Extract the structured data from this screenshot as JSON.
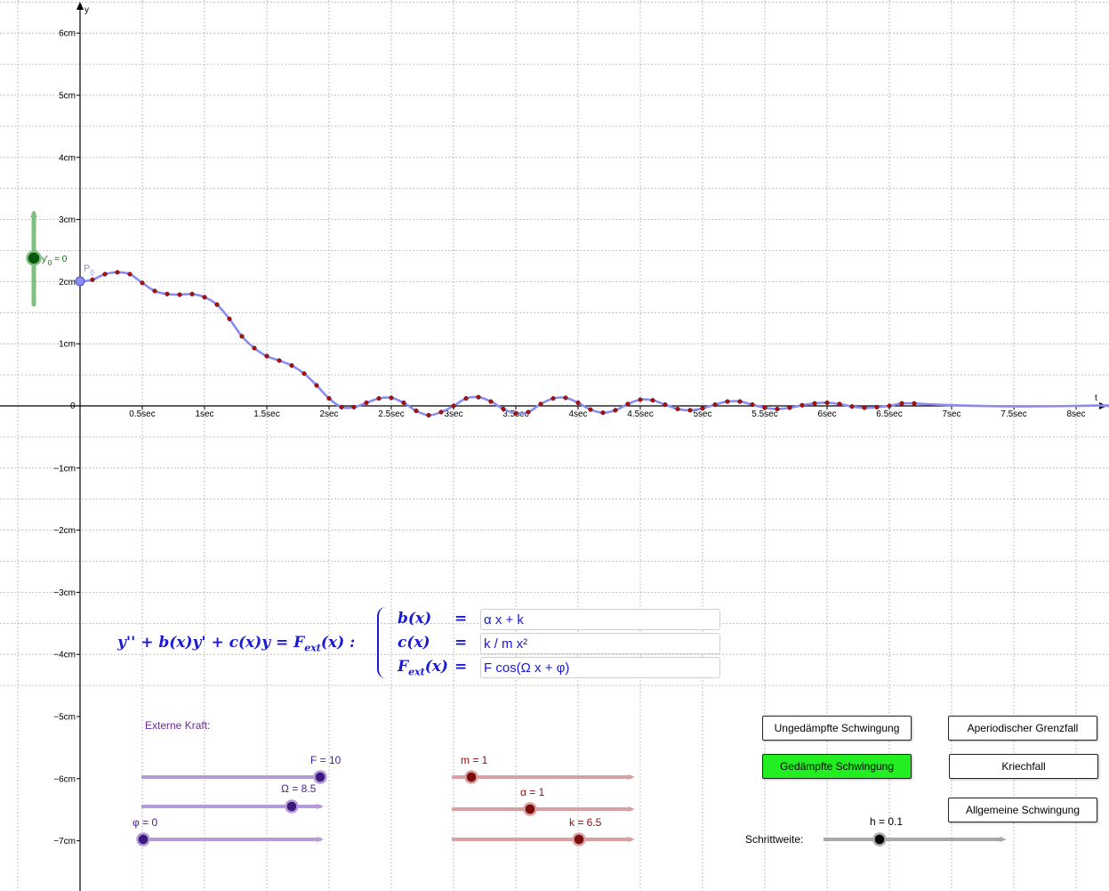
{
  "axes": {
    "x_name": "t",
    "y_name": "y",
    "x_ticks": [
      "0.5sec",
      "1sec",
      "1.5sec",
      "2sec",
      "2.5sec",
      "3sec",
      "3.5sec",
      "4sec",
      "4.5sec",
      "5sec",
      "5.5sec",
      "6sec",
      "6.5sec",
      "7sec",
      "7.5sec",
      "8sec"
    ],
    "y_ticks_pos": [
      "1cm",
      "2cm",
      "3cm",
      "4cm",
      "5cm",
      "6cm"
    ],
    "y_ticks_neg": [
      "−1cm",
      "−2cm",
      "−3cm",
      "−4cm",
      "−5cm",
      "−6cm",
      "−7cm"
    ],
    "origin_label": "0"
  },
  "point_label": "P",
  "point_subscript": "0",
  "y0_slider": {
    "label": "y'",
    "subscript": "0",
    "value_text": " = 0",
    "value": 0
  },
  "equation": {
    "lhs": "y'' + b(x)y' + c(x)y = F",
    "lhs_sub": "ext",
    "lhs_tail": "(x) :",
    "row_b": "b(x)",
    "row_c": "c(x)",
    "row_f": "F",
    "row_f_sub": "ext",
    "row_f_tail": "(x)",
    "eq_sign": "=",
    "b_value": "α x + k",
    "c_value": "k / m x²",
    "f_value": "F cos(Ω x + φ)"
  },
  "external_force_label": "Externe Kraft:",
  "sliders": {
    "F": {
      "label": "F = 10",
      "value": 10
    },
    "Omega": {
      "label": "Ω = 8.5",
      "value": 8.5
    },
    "phi": {
      "label": "φ = 0",
      "value": 0
    },
    "m": {
      "label": "m = 1",
      "value": 1
    },
    "alpha": {
      "label": "α = 1",
      "value": 1
    },
    "k": {
      "label": "k = 6.5",
      "value": 6.5
    },
    "h": {
      "label": "h = 0.1",
      "value": 0.1
    }
  },
  "step_label": "Schrittweite:",
  "buttons": {
    "undamped": "Ungedämpfte Schwingung",
    "aperiodic": "Aperiodischer Grenzfall",
    "damped": "Gedämpfte Schwingung",
    "creep": "Kriechfall",
    "general": "Allgemeine Schwingung"
  },
  "colors": {
    "curve": "#8c8cf0",
    "points": "#c01010",
    "purple_slider": "#9f7cc6",
    "red_slider": "#d08c8c",
    "green_slider": "#7fbf7f",
    "active_button": "#22ee22"
  },
  "chart_data": {
    "type": "line",
    "xlabel": "t",
    "ylabel": "y",
    "xlim": [
      -0.65,
      8.3
    ],
    "ylim": [
      -7.8,
      6.5
    ],
    "series": [
      {
        "x": [
          0,
          0.1,
          0.2,
          0.3,
          0.4,
          0.5,
          0.6,
          0.7,
          0.8,
          0.9,
          1.0,
          1.1,
          1.2,
          1.3,
          1.4,
          1.5,
          1.6,
          1.7,
          1.8,
          1.9,
          2.0,
          2.1,
          2.2,
          2.3,
          2.4,
          2.5,
          2.6,
          2.7,
          2.8,
          2.9,
          3.0,
          3.1,
          3.2,
          3.3,
          3.4,
          3.5,
          3.6,
          3.7,
          3.8,
          3.9,
          4.0,
          4.1,
          4.2,
          4.3,
          4.4,
          4.5,
          4.6,
          4.7,
          4.8,
          4.9,
          5.0,
          5.1,
          5.2,
          5.3,
          5.4,
          5.5,
          5.6,
          5.7,
          5.8,
          5.9,
          6.0,
          6.1,
          6.2,
          6.3,
          6.4,
          6.5,
          6.6,
          6.7
        ],
        "y": [
          2.0,
          2.03,
          2.12,
          2.15,
          2.12,
          1.98,
          1.85,
          1.8,
          1.79,
          1.8,
          1.75,
          1.63,
          1.4,
          1.12,
          0.93,
          0.8,
          0.73,
          0.65,
          0.52,
          0.33,
          0.12,
          -0.02,
          -0.02,
          0.05,
          0.12,
          0.13,
          0.05,
          -0.08,
          -0.15,
          -0.1,
          0.0,
          0.12,
          0.14,
          0.07,
          -0.05,
          -0.12,
          -0.1,
          0.03,
          0.12,
          0.13,
          0.05,
          -0.06,
          -0.11,
          -0.07,
          0.03,
          0.1,
          0.09,
          0.02,
          -0.05,
          -0.07,
          -0.04,
          0.02,
          0.07,
          0.07,
          0.02,
          -0.03,
          -0.05,
          -0.03,
          0.01,
          0.04,
          0.05,
          0.03,
          -0.01,
          -0.03,
          -0.02,
          0.0,
          0.04,
          0.04
        ]
      }
    ]
  }
}
